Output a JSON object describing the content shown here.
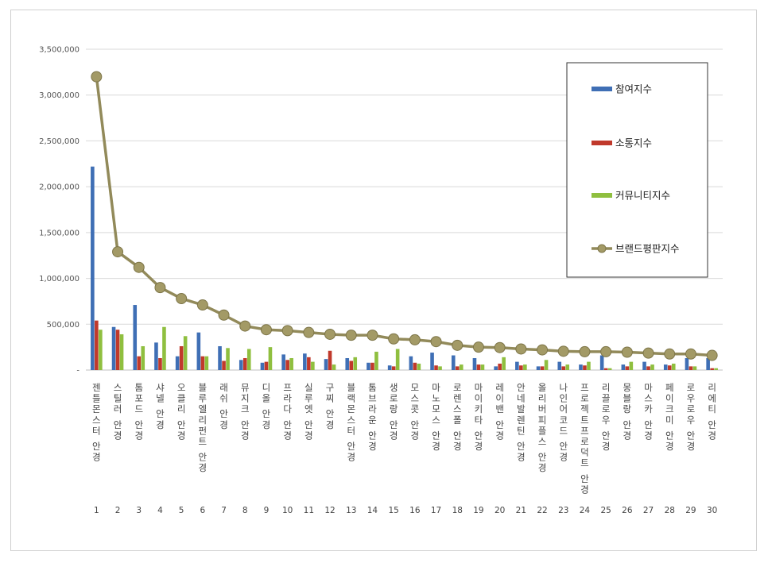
{
  "chart_data": {
    "type": "bar",
    "title": "",
    "xlabel": "",
    "ylabel": "",
    "ylim": [
      0,
      3500000
    ],
    "yticks": [
      0,
      500000,
      1000000,
      1500000,
      2000000,
      2500000,
      3000000,
      3500000
    ],
    "ytick_labels": [
      "-",
      "500,000",
      "1,000,000",
      "1,500,000",
      "2,000,000",
      "2,500,000",
      "3,000,000",
      "3,500,000"
    ],
    "grid": true,
    "legend_position": "right",
    "ranks": [
      "1",
      "2",
      "3",
      "4",
      "5",
      "6",
      "7",
      "8",
      "9",
      "10",
      "11",
      "12",
      "13",
      "14",
      "15",
      "16",
      "17",
      "18",
      "19",
      "20",
      "21",
      "22",
      "23",
      "24",
      "25",
      "26",
      "27",
      "28",
      "29",
      "30"
    ],
    "categories": [
      "젠틀몬스터 안경",
      "스틸러 안경",
      "톰포드 안경",
      "샤넬 안경",
      "오클리 안경",
      "블루엘리펀트 안경",
      "래쉬 안경",
      "뮤지크 안경",
      "디올 안경",
      "프라다 안경",
      "실루엣 안경",
      "구찌 안경",
      "블랙몬스터 안경",
      "톰브라운 안경",
      "생로랑 안경",
      "모스콧 안경",
      "마노모스 안경",
      "로렌스폴 안경",
      "마이키타 안경",
      "레이밴 안경",
      "안네발렌틴 안경",
      "올리버피플스 안경",
      "나인어코드 안경",
      "프로젝트프로덕트 안경",
      "리끌로우 안경",
      "몽블랑 안경",
      "마스카 안경",
      "페이크미 안경",
      "로우로우 안경",
      "리에티 안경"
    ],
    "series": [
      {
        "name": "참여지수",
        "kind": "bar",
        "color": "#3f6fb5",
        "values": [
          2220000,
          470000,
          710000,
          300000,
          150000,
          410000,
          260000,
          110000,
          80000,
          170000,
          180000,
          120000,
          130000,
          80000,
          50000,
          150000,
          190000,
          160000,
          130000,
          40000,
          90000,
          40000,
          90000,
          60000,
          160000,
          60000,
          90000,
          60000,
          130000,
          130000
        ]
      },
      {
        "name": "소통지수",
        "kind": "bar",
        "color": "#c0392b",
        "values": [
          540000,
          440000,
          150000,
          130000,
          260000,
          150000,
          100000,
          130000,
          90000,
          110000,
          140000,
          210000,
          100000,
          80000,
          40000,
          80000,
          50000,
          40000,
          60000,
          70000,
          50000,
          40000,
          40000,
          50000,
          20000,
          40000,
          40000,
          50000,
          40000,
          20000
        ]
      },
      {
        "name": "커뮤니티지수",
        "kind": "bar",
        "color": "#8fbf3f",
        "values": [
          440000,
          390000,
          260000,
          470000,
          370000,
          150000,
          240000,
          230000,
          250000,
          130000,
          90000,
          60000,
          140000,
          200000,
          230000,
          70000,
          40000,
          60000,
          60000,
          140000,
          60000,
          110000,
          60000,
          90000,
          20000,
          90000,
          60000,
          70000,
          40000,
          20000
        ]
      },
      {
        "name": "브랜드평판지수",
        "kind": "line",
        "color": "#928a5a",
        "values": [
          3200000,
          1290000,
          1120000,
          900000,
          780000,
          710000,
          600000,
          480000,
          440000,
          430000,
          410000,
          390000,
          380000,
          380000,
          340000,
          330000,
          310000,
          270000,
          250000,
          245000,
          230000,
          220000,
          205000,
          200000,
          200000,
          195000,
          185000,
          175000,
          175000,
          160000
        ]
      }
    ]
  }
}
